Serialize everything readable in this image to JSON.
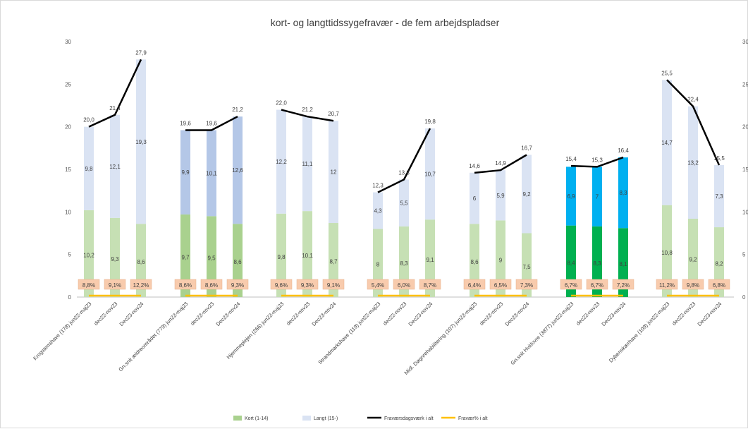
{
  "chart_data": {
    "type": "bar",
    "stacked": true,
    "title": "kort- og langttidssygefravær - de fem arbejdspladser",
    "ylim": [
      0,
      30
    ],
    "yticks": [
      0,
      5,
      10,
      15,
      20,
      25,
      30
    ],
    "grid": false,
    "legend_position": "bottom",
    "groups": [
      {
        "categories": [
          "Krogstenshave (178) jun22-maj23",
          "dec22-nov23",
          "Dec23-nov24"
        ],
        "kort": [
          10.2,
          9.3,
          8.6
        ],
        "kort_labels": [
          "10,2",
          "9,3",
          "8,6"
        ],
        "langt": [
          9.8,
          12.1,
          19.3
        ],
        "langt_labels": [
          "9,8",
          "12,1",
          "19,3"
        ],
        "total": [
          20.0,
          21.4,
          27.9
        ],
        "total_labels": [
          "20,0",
          "21,4",
          "27,9"
        ],
        "pct_labels": [
          "8,8%",
          "9,1%",
          "12,2%"
        ],
        "kort_color": "#c6e0b4",
        "langt_color": "#dae3f3"
      },
      {
        "categories": [
          "Gn.snit ældreområdet (779) jun22-maj23",
          "dec22-nov23",
          "Dec23-nov24"
        ],
        "kort": [
          9.7,
          9.5,
          8.6
        ],
        "kort_labels": [
          "9,7",
          "9,5",
          "8,6"
        ],
        "langt": [
          9.9,
          10.1,
          12.6
        ],
        "langt_labels": [
          "9,9",
          "10,1",
          "12,6"
        ],
        "total": [
          19.6,
          19.6,
          21.2
        ],
        "total_labels": [
          "19,6",
          "19,6",
          "21,2"
        ],
        "pct_labels": [
          "8,6%",
          "8,6%",
          "9,3%"
        ],
        "kort_color": "#a9d18e",
        "langt_color": "#b4c7e7"
      },
      {
        "categories": [
          "Hjemmeplejen (266) jun22-maj23",
          "dec22-nov23",
          "Dec23-nov24"
        ],
        "kort": [
          9.8,
          10.1,
          8.7
        ],
        "kort_labels": [
          "9,8",
          "10,1",
          "8,7"
        ],
        "langt": [
          12.2,
          11.1,
          12.0
        ],
        "langt_labels": [
          "12,2",
          "11,1",
          "12"
        ],
        "total": [
          22.0,
          21.2,
          20.7
        ],
        "total_labels": [
          "22,0",
          "21,2",
          "20,7"
        ],
        "pct_labels": [
          "9,6%",
          "9,3%",
          "9,1%"
        ],
        "kort_color": "#c6e0b4",
        "langt_color": "#dae3f3"
      },
      {
        "categories": [
          "Strandmarkshave (119) jun22-maj23",
          "dec22-nov23",
          "Dec23-nov24"
        ],
        "kort": [
          8.0,
          8.3,
          9.1
        ],
        "kort_labels": [
          "8",
          "8,3",
          "9,1"
        ],
        "langt": [
          4.3,
          5.5,
          10.7
        ],
        "langt_labels": [
          "4,3",
          "5,5",
          "10,7"
        ],
        "total": [
          12.3,
          13.8,
          19.8
        ],
        "total_labels": [
          "12,3",
          "13,8",
          "19,8"
        ],
        "pct_labels": [
          "5,4%",
          "6,0%",
          "8,7%"
        ],
        "kort_color": "#c6e0b4",
        "langt_color": "#dae3f3"
      },
      {
        "categories": [
          "Midl. Døgnrehabilitering (107) jun22-maj23",
          "dec22-nov23",
          "Dec23-nov24"
        ],
        "kort": [
          8.6,
          9.0,
          7.5
        ],
        "kort_labels": [
          "8,6",
          "9",
          "7,5"
        ],
        "langt": [
          6.0,
          5.9,
          9.2
        ],
        "langt_labels": [
          "6",
          "5,9",
          "9,2"
        ],
        "total": [
          14.6,
          14.9,
          16.7
        ],
        "total_labels": [
          "14,6",
          "14,9",
          "16,7"
        ],
        "pct_labels": [
          "6,4%",
          "6,5%",
          "7,3%"
        ],
        "kort_color": "#c6e0b4",
        "langt_color": "#dae3f3"
      },
      {
        "categories": [
          "Gn.snit Hvidovre (3877) jun22-maj23",
          "dec22-nov23",
          "Dec23-nov24"
        ],
        "kort": [
          8.4,
          8.3,
          8.1
        ],
        "kort_labels": [
          "8,4",
          "8,3",
          "8,1"
        ],
        "langt": [
          6.9,
          7.0,
          8.3
        ],
        "langt_labels": [
          "6,9",
          "7",
          "8,3"
        ],
        "total": [
          15.4,
          15.3,
          16.4
        ],
        "total_labels": [
          "15,4",
          "15,3",
          "16,4"
        ],
        "pct_labels": [
          "6,7%",
          "6,7%",
          "7,2%"
        ],
        "kort_color": "#00b050",
        "langt_color": "#00b0f0"
      },
      {
        "categories": [
          "Dybenskærhave (109) jun22-maj23",
          "dec22-nov23",
          "Dec23-nov24"
        ],
        "kort": [
          10.8,
          9.2,
          8.2
        ],
        "kort_labels": [
          "10,8",
          "9,2",
          "8,2"
        ],
        "langt": [
          14.7,
          13.2,
          7.3
        ],
        "langt_labels": [
          "14,7",
          "13,2",
          "7,3"
        ],
        "total": [
          25.5,
          22.4,
          15.5
        ],
        "total_labels": [
          "25,5",
          "22,4",
          "15,5"
        ],
        "pct_labels": [
          "11,2%",
          "9,8%",
          "6,8%"
        ],
        "kort_color": "#c6e0b4",
        "langt_color": "#dae3f3"
      }
    ],
    "legend": [
      {
        "label": "Kort (1-14)",
        "kind": "rect",
        "color": "#a9d18e"
      },
      {
        "label": "Langt (15-)",
        "kind": "rect",
        "color": "#dae3f3"
      },
      {
        "label": "Fraværsdagsværk i alt",
        "kind": "line",
        "color": "#000000"
      },
      {
        "label": "Fravær% i alt",
        "kind": "line",
        "color": "#ffc000"
      }
    ],
    "colors": {
      "total_line": "#000000",
      "pct_line": "#ffc000",
      "pct_box": "#f8cbad",
      "axis": "#bfbfbf"
    }
  }
}
